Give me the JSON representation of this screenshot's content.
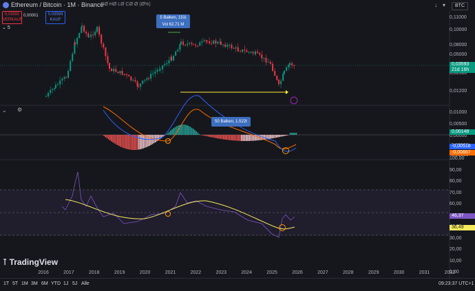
{
  "header": {
    "title": "Ethereum / Bitcoin · 1M · Binance",
    "ohlc": "OØ HØ LØ CØ Ø (Ø%)",
    "currency": "BTC",
    "sell_price": "0,03592",
    "sell_label": "VERKAUF",
    "spread": "0,00001",
    "buy_price": "0,03593",
    "buy_label": "KAUF",
    "indicators_count": "5"
  },
  "price_axis": [
    "0,11000",
    "0,10000",
    "0,08000",
    "0,05000",
    "0,02500",
    "0,01200"
  ],
  "price_tag": {
    "value": "0,03593",
    "countdown": "21d 16h"
  },
  "callouts": {
    "top": {
      "line1": "5 Balken, 151t",
      "line2": "Vol 62,71 M"
    },
    "mid": {
      "line1": "50 Balken, 1.522t"
    }
  },
  "macd_axis": [
    "0,01000",
    "0,00500",
    "0,00000",
    "-0,00500",
    "-0,01000"
  ],
  "macd_tags": {
    "hist": "0,00148",
    "macd": "-0,00518",
    "signal": "-0,00667"
  },
  "rsi_axis": [
    "100,00",
    "90,00",
    "80,00",
    "70,00",
    "60,00",
    "50,00",
    "40,00",
    "30,00",
    "20,00",
    "10,00",
    "0,00"
  ],
  "rsi_tags": {
    "rsi": "46,37",
    "ma": "36,49"
  },
  "x_labels": [
    "2016",
    "2017",
    "2018",
    "2019",
    "2020",
    "2021",
    "2022",
    "2023",
    "2024",
    "2025",
    "2026",
    "2027",
    "2028",
    "2029",
    "2030",
    "2031",
    "2032"
  ],
  "timeframes": [
    "1T",
    "5T",
    "1M",
    "3M",
    "6M",
    "YTD",
    "1J",
    "5J",
    "Alle"
  ],
  "clock": "09:23:37 UTC+1",
  "watermark": "TradingView",
  "colors": {
    "up": "#089981",
    "down": "#f23645",
    "macd": "#2962ff",
    "signal": "#ff6d00",
    "rsi": "#7e57c2",
    "rsi_ma": "#f5eb5d",
    "rsi_band": "#7e57c2"
  }
}
